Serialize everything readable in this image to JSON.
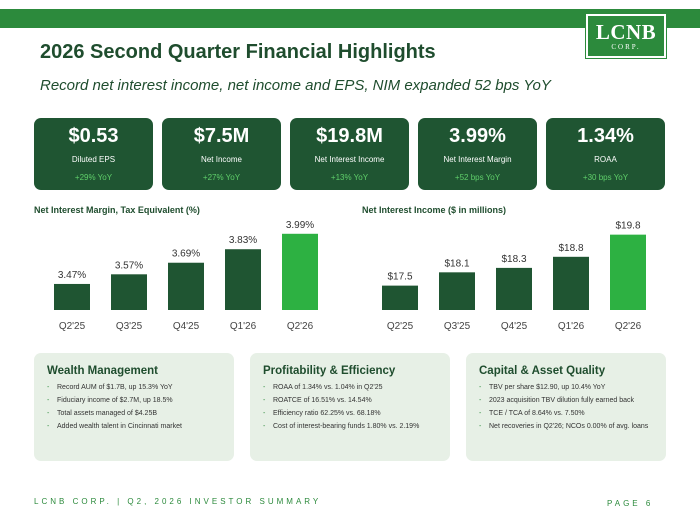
{
  "header": {
    "title": "2026 Second Quarter Financial Highlights",
    "subtitle": "Record net interest income, net income and EPS, NIM expanded 52 bps YoY",
    "logo_main": "LCNB",
    "logo_sub": "CORP.",
    "bar_color": "#2c8a3c"
  },
  "kpis": [
    {
      "value": "$0.53",
      "label": "Diluted EPS",
      "change": "+29% YoY"
    },
    {
      "value": "$7.5M",
      "label": "Net Income",
      "change": "+27% YoY"
    },
    {
      "value": "$19.8M",
      "label": "Net Interest Income",
      "change": "+13% YoY"
    },
    {
      "value": "3.99%",
      "label": "Net Interest Margin",
      "change": "+52 bps YoY"
    },
    {
      "value": "1.34%",
      "label": "ROAA",
      "change": "+30 bps YoY"
    }
  ],
  "chart_data": [
    {
      "type": "bar",
      "title": "Net Interest Margin, Tax Equivalent (%)",
      "categories": [
        "Q2'25",
        "Q3'25",
        "Q4'25",
        "Q1'26",
        "Q2'26"
      ],
      "values": [
        3.47,
        3.57,
        3.69,
        3.83,
        3.99
      ],
      "data_labels": [
        "3.47%",
        "3.57%",
        "3.69%",
        "3.83%",
        "3.99%"
      ],
      "ylim": [
        3.2,
        4.05
      ],
      "colors": [
        "#1f5532",
        "#1f5532",
        "#1f5532",
        "#1f5532",
        "#2db142"
      ],
      "grid": false
    },
    {
      "type": "bar",
      "title": "Net Interest Income ($ in millions)",
      "categories": [
        "Q2'25",
        "Q3'25",
        "Q4'25",
        "Q1'26",
        "Q2'26"
      ],
      "values": [
        17.5,
        18.1,
        18.3,
        18.8,
        19.8
      ],
      "data_labels": [
        "$17.5",
        "$18.1",
        "$18.3",
        "$18.8",
        "$19.8"
      ],
      "ylim": [
        16.4,
        20.1
      ],
      "colors": [
        "#1f5532",
        "#1f5532",
        "#1f5532",
        "#1f5532",
        "#2db142"
      ],
      "grid": false
    }
  ],
  "panels": [
    {
      "title": "Wealth Management",
      "items": [
        "Record AUM of $1.7B, up 15.3% YoY",
        "Fiduciary income of $2.7M, up 18.5%",
        "Total assets managed of $4.25B",
        "Added wealth talent in Cincinnati market"
      ]
    },
    {
      "title": "Profitability & Efficiency",
      "items": [
        "ROAA of 1.34% vs. 1.04% in Q2'25",
        "ROATCE of 16.51% vs. 14.54%",
        "Efficiency ratio 62.25% vs. 68.18%",
        "Cost of interest-bearing funds 1.80% vs. 2.19%"
      ]
    },
    {
      "title": "Capital & Asset Quality",
      "items": [
        "TBV per share $12.90, up 10.4% YoY",
        "2023 acquisition TBV dilution fully earned back",
        "TCE / TCA of 8.64% vs. 7.50%",
        "Net recoveries in Q2'26; NCOs 0.00% of avg. loans"
      ]
    }
  ],
  "footer": {
    "left": "LCNB CORP.  |  Q2, 2026 INVESTOR SUMMARY",
    "page": "PAGE  6"
  }
}
